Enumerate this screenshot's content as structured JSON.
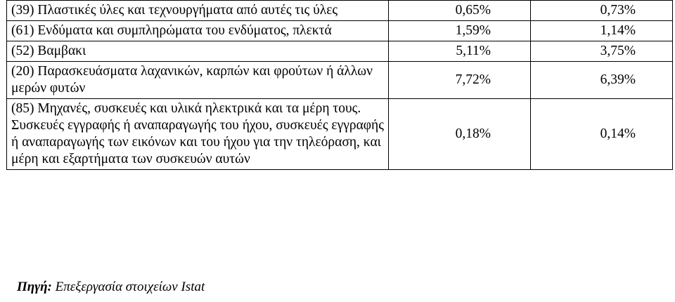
{
  "table": {
    "rows": [
      {
        "product": "(39) Πλαστικές ύλες και τεχνουργήματα από αυτές τις ύλες",
        "value_a": "0,65%",
        "value_b": "0,73%"
      },
      {
        "product": "(61) Ενδύματα και συμπληρώματα του ενδύματος, πλεκτά",
        "value_a": "1,59%",
        "value_b": "1,14%"
      },
      {
        "product": "(52) Βαμβακι",
        "value_a": "5,11%",
        "value_b": "3,75%"
      },
      {
        "product": "(20) Παρασκευάσματα λαχανικών, καρπών και φρούτων ή άλλων μερών φυτών",
        "value_a": "7,72%",
        "value_b": "6,39%"
      },
      {
        "product": "(85) Μηχανές, συσκευές και υλικά ηλεκτρικά και τα μέρη τους. Συσκευές εγγραφής ή αναπαραγωγής του ήχου, συσκευές εγγραφής ή αναπαραγωγής των εικόνων και του ήχου για την τηλεόραση, και μέρη και εξαρτήματα των συσκευών αυτών",
        "value_a": "0,18%",
        "value_b": "0,14%"
      }
    ]
  },
  "source": {
    "label": "Πηγή:",
    "text": " Επεξεργασία στοιχείων Istat"
  }
}
